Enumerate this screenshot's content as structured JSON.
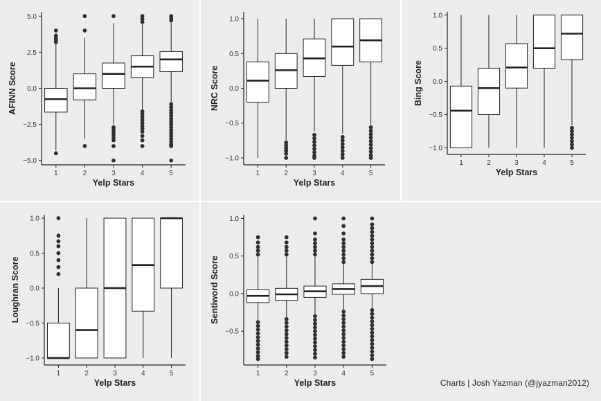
{
  "credit": "Charts | Josh Yazman (@jyazman2012)",
  "colors": {
    "background": "#ececec",
    "box_fill": "#ffffff",
    "line": "#222222",
    "outlier": "#303030",
    "separator": "#ffffff"
  },
  "chart_data": [
    {
      "type": "boxplot",
      "xlabel": "Yelp Stars",
      "ylabel": "AFINN Score",
      "categories": [
        "1",
        "2",
        "3",
        "4",
        "5"
      ],
      "ylim": [
        -5.3,
        5.3
      ],
      "yticks": [
        -5.0,
        -2.5,
        0.0,
        2.5,
        5.0
      ],
      "yticklabels": [
        "−5.0",
        "−2.5",
        "0.0",
        "2.5",
        "5.0"
      ],
      "boxes": [
        {
          "whisker_low": -4.3,
          "q1": -1.65,
          "median": -0.75,
          "q3": 0.0,
          "whisker_high": 3.8
        },
        {
          "whisker_low": -3.5,
          "q1": -0.8,
          "median": 0.0,
          "q3": 1.0,
          "whisker_high": 3.5
        },
        {
          "whisker_low": -2.5,
          "q1": 0.0,
          "median": 1.0,
          "q3": 1.75,
          "whisker_high": 4.5
        },
        {
          "whisker_low": -1.5,
          "q1": 0.75,
          "median": 1.5,
          "q3": 2.25,
          "whisker_high": 4.5
        },
        {
          "whisker_low": -1.0,
          "q1": 1.15,
          "median": 2.0,
          "q3": 2.55,
          "whisker_high": 4.6
        }
      ],
      "outliers": [
        [
          -4.5,
          3.2,
          3.35,
          3.5,
          3.65,
          4.0
        ],
        [
          -4.0,
          4.0,
          5.0
        ],
        [
          -2.7,
          -2.85,
          -3.0,
          -3.2,
          -3.4,
          -3.6,
          -4.0,
          -5.0,
          5.0
        ],
        [
          -1.6,
          -1.8,
          -2.0,
          -2.2,
          -2.4,
          -2.6,
          -2.8,
          -3.0,
          -3.3,
          -3.6,
          -4.0,
          4.6,
          4.8,
          5.0
        ],
        [
          -1.1,
          -1.3,
          -1.5,
          -1.7,
          -1.9,
          -2.1,
          -2.3,
          -2.5,
          -2.7,
          -2.9,
          -3.1,
          -3.3,
          -3.5,
          -3.7,
          -3.9,
          -4.0,
          -5.0,
          4.7,
          4.85,
          5.0
        ]
      ]
    },
    {
      "type": "boxplot",
      "xlabel": "Yelp Stars",
      "ylabel": "NRC Score",
      "categories": [
        "1",
        "2",
        "3",
        "4",
        "5"
      ],
      "ylim": [
        -1.1,
        1.1
      ],
      "yticks": [
        -1.0,
        -0.5,
        0.0,
        0.5,
        1.0
      ],
      "yticklabels": [
        "−1.0",
        "−0.5",
        "0.0",
        "0.5",
        "1.0"
      ],
      "boxes": [
        {
          "whisker_low": -1.0,
          "q1": -0.2,
          "median": 0.11,
          "q3": 0.38,
          "whisker_high": 1.0
        },
        {
          "whisker_low": -0.75,
          "q1": 0.0,
          "median": 0.26,
          "q3": 0.5,
          "whisker_high": 1.0
        },
        {
          "whisker_low": -0.62,
          "q1": 0.17,
          "median": 0.43,
          "q3": 0.71,
          "whisker_high": 1.0
        },
        {
          "whisker_low": -0.65,
          "q1": 0.33,
          "median": 0.6,
          "q3": 1.0,
          "whisker_high": 1.0
        },
        {
          "whisker_low": -0.52,
          "q1": 0.38,
          "median": 0.69,
          "q3": 1.0,
          "whisker_high": 1.0
        }
      ],
      "outliers": [
        [],
        [
          -0.78,
          -0.82,
          -0.86,
          -0.9,
          -0.94,
          -1.0
        ],
        [
          -0.67,
          -0.72,
          -0.77,
          -0.82,
          -0.87,
          -0.92,
          -0.97,
          -1.0
        ],
        [
          -0.7,
          -0.75,
          -0.8,
          -0.85,
          -0.9,
          -0.95,
          -1.0
        ],
        [
          -0.56,
          -0.61,
          -0.66,
          -0.71,
          -0.76,
          -0.81,
          -0.86,
          -0.91,
          -0.96,
          -1.0
        ]
      ]
    },
    {
      "type": "boxplot",
      "xlabel": "Yelp Stars",
      "ylabel": "Bing Score",
      "categories": [
        "1",
        "2",
        "3",
        "4",
        "5"
      ],
      "ylim": [
        -1.1,
        1.05
      ],
      "yticks": [
        -1.0,
        -0.5,
        0.0,
        0.5,
        1.0
      ],
      "yticklabels": [
        "−1.0",
        "−0.5",
        "0.0",
        "0.5",
        "1.0"
      ],
      "boxes": [
        {
          "whisker_low": -1.0,
          "q1": -1.0,
          "median": -0.44,
          "q3": -0.07,
          "whisker_high": 1.0
        },
        {
          "whisker_low": -1.0,
          "q1": -0.5,
          "median": -0.1,
          "q3": 0.2,
          "whisker_high": 1.0
        },
        {
          "whisker_low": -1.0,
          "q1": -0.1,
          "median": 0.21,
          "q3": 0.57,
          "whisker_high": 1.0
        },
        {
          "whisker_low": -1.0,
          "q1": 0.2,
          "median": 0.5,
          "q3": 1.0,
          "whisker_high": 1.0
        },
        {
          "whisker_low": -0.66,
          "q1": 0.33,
          "median": 0.72,
          "q3": 1.0,
          "whisker_high": 1.0
        }
      ],
      "outliers": [
        [],
        [],
        [],
        [],
        [
          -0.7,
          -0.75,
          -0.8,
          -0.85,
          -0.9,
          -0.95,
          -1.0
        ]
      ]
    },
    {
      "type": "boxplot",
      "xlabel": "Yelp Stars",
      "ylabel": "Loughran Score",
      "categories": [
        "1",
        "2",
        "3",
        "4",
        "5"
      ],
      "ylim": [
        -1.1,
        1.05
      ],
      "yticks": [
        -1.0,
        -0.5,
        0.0,
        0.5,
        1.0
      ],
      "yticklabels": [
        "−1.0",
        "−0.5",
        "0.0",
        "0.5",
        "1.0"
      ],
      "boxes": [
        {
          "whisker_low": -1.0,
          "q1": -1.0,
          "median": -1.0,
          "q3": -0.5,
          "whisker_high": 0.0
        },
        {
          "whisker_low": -1.0,
          "q1": -1.0,
          "median": -0.6,
          "q3": 0.0,
          "whisker_high": 1.0
        },
        {
          "whisker_low": -1.0,
          "q1": -1.0,
          "median": 0.0,
          "q3": 1.0,
          "whisker_high": 1.0
        },
        {
          "whisker_low": -1.0,
          "q1": -0.33,
          "median": 0.33,
          "q3": 1.0,
          "whisker_high": 1.0
        },
        {
          "whisker_low": -1.0,
          "q1": 0.0,
          "median": 1.0,
          "q3": 1.0,
          "whisker_high": 1.0
        }
      ],
      "outliers": [
        [
          0.2,
          0.3,
          0.4,
          0.5,
          0.6,
          0.67,
          0.75,
          1.0
        ],
        [],
        [],
        [],
        []
      ]
    },
    {
      "type": "boxplot",
      "xlabel": "Yelp Stars",
      "ylabel": "Sentiword Score",
      "categories": [
        "1",
        "2",
        "3",
        "4",
        "5"
      ],
      "ylim": [
        -0.95,
        1.05
      ],
      "yticks": [
        -0.5,
        0.0,
        0.5,
        1.0
      ],
      "yticklabels": [
        "−0.5",
        "0.0",
        "0.5",
        "1.0"
      ],
      "boxes": [
        {
          "whisker_low": -0.35,
          "q1": -0.12,
          "median": -0.03,
          "q3": 0.05,
          "whisker_high": 0.5
        },
        {
          "whisker_low": -0.32,
          "q1": -0.09,
          "median": -0.01,
          "q3": 0.07,
          "whisker_high": 0.5
        },
        {
          "whisker_low": -0.28,
          "q1": -0.05,
          "median": 0.03,
          "q3": 0.1,
          "whisker_high": 0.5
        },
        {
          "whisker_low": -0.22,
          "q1": -0.01,
          "median": 0.06,
          "q3": 0.13,
          "whisker_high": 0.4
        },
        {
          "whisker_low": -0.2,
          "q1": 0.0,
          "median": 0.1,
          "q3": 0.19,
          "whisker_high": 0.4
        }
      ],
      "outliers": [
        [
          -0.38,
          -0.43,
          -0.48,
          -0.53,
          -0.58,
          -0.63,
          -0.68,
          -0.73,
          -0.78,
          -0.83,
          -0.87,
          0.52,
          0.57,
          0.62,
          0.68,
          0.75
        ],
        [
          -0.34,
          -0.39,
          -0.44,
          -0.49,
          -0.54,
          -0.59,
          -0.64,
          -0.69,
          -0.74,
          -0.79,
          -0.84,
          0.52,
          0.57,
          0.62,
          0.68,
          0.75
        ],
        [
          -0.3,
          -0.35,
          -0.4,
          -0.45,
          -0.5,
          -0.55,
          -0.6,
          -0.65,
          -0.7,
          -0.75,
          -0.8,
          -0.85,
          0.52,
          0.57,
          0.62,
          0.67,
          0.72,
          0.8,
          1.0
        ],
        [
          -0.24,
          -0.29,
          -0.34,
          -0.39,
          -0.44,
          -0.49,
          -0.54,
          -0.59,
          -0.64,
          -0.69,
          -0.74,
          -0.79,
          -0.84,
          0.42,
          0.47,
          0.52,
          0.57,
          0.62,
          0.67,
          0.72,
          0.8,
          0.9,
          1.0
        ],
        [
          -0.22,
          -0.27,
          -0.32,
          -0.37,
          -0.42,
          -0.47,
          -0.52,
          -0.57,
          -0.62,
          -0.67,
          -0.72,
          -0.77,
          -0.82,
          -0.87,
          0.42,
          0.47,
          0.52,
          0.57,
          0.62,
          0.67,
          0.72,
          0.77,
          0.82,
          0.87,
          0.92,
          1.0
        ]
      ]
    }
  ]
}
